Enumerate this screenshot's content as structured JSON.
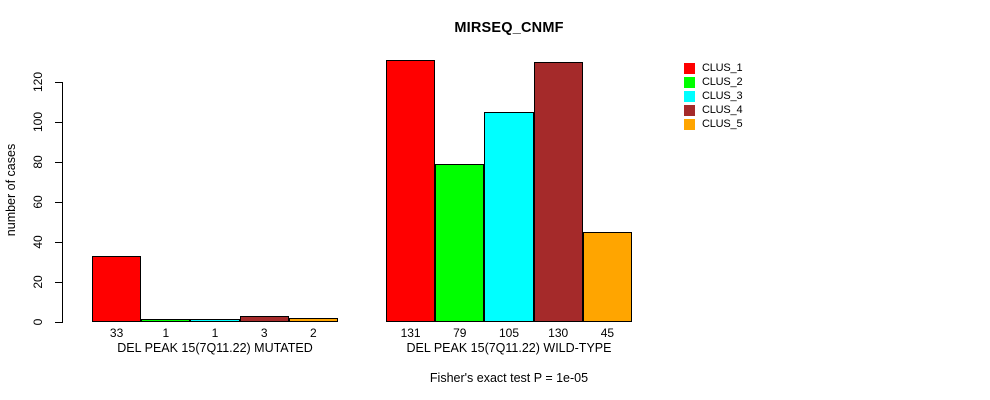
{
  "figure": {
    "background": "#ffffff"
  },
  "chart_data": {
    "type": "bar",
    "title": "MIRSEQ_CNMF",
    "ylabel": "number of cases",
    "xlabel": "",
    "ylim": [
      0,
      131
    ],
    "yticks": [
      0,
      20,
      40,
      60,
      80,
      100,
      120
    ],
    "grid": false,
    "legend_position": "right-outside",
    "categories": [
      "DEL PEAK 15(7Q11.22) MUTATED",
      "DEL PEAK 15(7Q11.22) WILD-TYPE"
    ],
    "series": [
      {
        "name": "CLUS_1",
        "color": "#FF0000",
        "values": [
          33,
          131
        ]
      },
      {
        "name": "CLUS_2",
        "color": "#00FF00",
        "values": [
          1,
          79
        ]
      },
      {
        "name": "CLUS_3",
        "color": "#00FFFF",
        "values": [
          1,
          105
        ]
      },
      {
        "name": "CLUS_4",
        "color": "#A52A2A",
        "values": [
          3,
          130
        ]
      },
      {
        "name": "CLUS_5",
        "color": "#FFA500",
        "values": [
          2,
          45
        ]
      }
    ],
    "bar_value_labels_shown": true,
    "annotation": "Fisher's exact test P = 1e-05",
    "axis_color": "#000000",
    "bar_border_color": "#000000"
  }
}
